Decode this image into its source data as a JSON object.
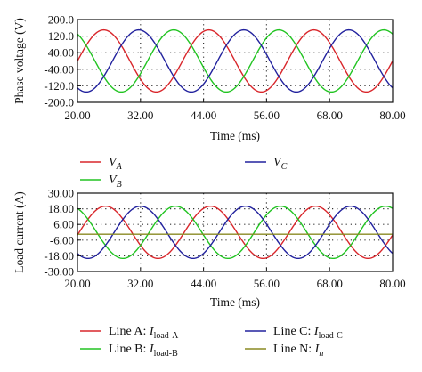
{
  "chart_data": [
    {
      "type": "line",
      "ylabel": "Phase voltage (V)",
      "xlabel": "Time (ms)",
      "xlim": [
        20,
        80
      ],
      "ylim": [
        -200,
        200
      ],
      "x_ticks": [
        "20.00",
        "32.00",
        "44.00",
        "56.00",
        "68.00",
        "80.00"
      ],
      "y_ticks": [
        "200.0",
        "120.0",
        "40.00",
        "-40.00",
        "-120.0",
        "-200.0"
      ],
      "grid": "dotted",
      "signal": {
        "shape": "sinusoid",
        "frequency_hz": 50,
        "amplitude": 150
      },
      "series": [
        {
          "name": "V",
          "sub": "A",
          "color": "#d9262b",
          "phase_deg": 0
        },
        {
          "name": "V",
          "sub": "B",
          "color": "#22c422",
          "phase_deg": 120
        },
        {
          "name": "V",
          "sub": "C",
          "color": "#22229e",
          "phase_deg": -120
        }
      ]
    },
    {
      "type": "line",
      "ylabel": "Load current (A)",
      "xlabel": "Time (ms)",
      "xlim": [
        20,
        80
      ],
      "ylim": [
        -30,
        30
      ],
      "x_ticks": [
        "20.00",
        "32.00",
        "44.00",
        "56.00",
        "68.00",
        "80.00"
      ],
      "y_ticks": [
        "30.00",
        "18.00",
        "6.00",
        "-6.00",
        "-18.00",
        "-30.00"
      ],
      "grid": "dotted",
      "signal": {
        "shape": "sinusoid",
        "frequency_hz": 50,
        "amplitude": 20
      },
      "series": [
        {
          "name": "Line A: I",
          "sub": "load-A",
          "color": "#d9262b",
          "phase_deg": -6
        },
        {
          "name": "Line B: I",
          "sub": "load-B",
          "color": "#22c422",
          "phase_deg": 114
        },
        {
          "name": "Line C: I",
          "sub": "load-C",
          "color": "#22229e",
          "phase_deg": -126
        },
        {
          "name": "Line N: I",
          "sub": "n",
          "color": "#8a8a22",
          "constant": -1.5
        }
      ]
    }
  ]
}
